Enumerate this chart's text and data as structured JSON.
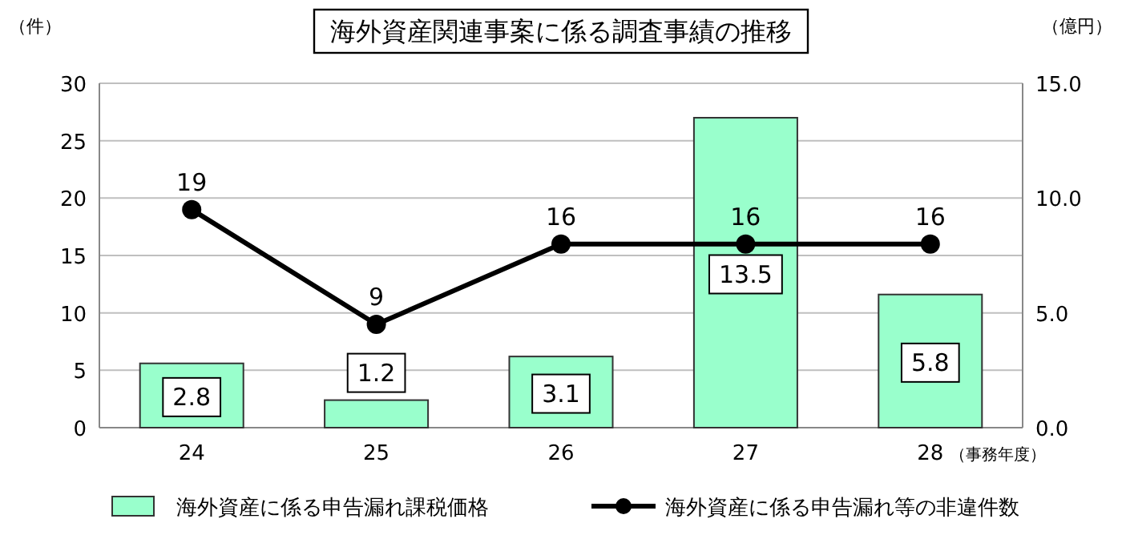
{
  "chart_data": {
    "type": "bar",
    "title": "海外資産関連事案に係る調査事績の推移",
    "xlabel": "（事務年度）",
    "ylabel": "（件）",
    "y2label": "（億円）",
    "categories": [
      "24",
      "25",
      "26",
      "27",
      "28"
    ],
    "series": [
      {
        "name": "海外資産に係る申告漏れ課税価格",
        "axis": "y2",
        "color": "#99ffcc",
        "values": [
          2.8,
          1.2,
          3.1,
          13.5,
          5.8
        ]
      },
      {
        "name": "海外資産に係る申告漏れ等の非違件数",
        "type": "line",
        "color": "#000000",
        "values": [
          19,
          9,
          16,
          16,
          16
        ]
      }
    ],
    "ylim": [
      0,
      30
    ],
    "yticks": [
      0,
      5,
      10,
      15,
      20,
      25,
      30
    ],
    "y2lim": [
      0,
      15
    ],
    "y2ticks": [
      {
        "value": 0,
        "label": "0.0"
      },
      {
        "value": 5,
        "label": "5.0"
      },
      {
        "value": 10,
        "label": "10.0"
      },
      {
        "value": 15,
        "label": "15.0"
      }
    ],
    "grid": "y",
    "legend": "bottom",
    "marker": "circle",
    "line_style": "solid",
    "data_labels": true
  }
}
